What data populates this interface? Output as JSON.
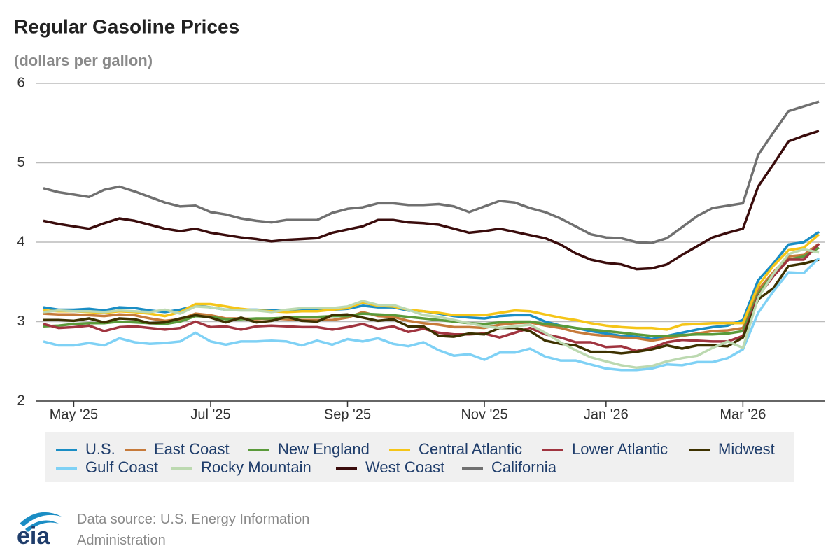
{
  "chart_data": {
    "type": "line",
    "title": "Regular Gasoline Prices",
    "subtitle": "(dollars per gallon)",
    "source": "Data source: U.S. Energy Information Administration",
    "logo": "eia",
    "categories": [
      null,
      null,
      "May '25",
      null,
      null,
      null,
      null,
      null,
      null,
      null,
      null,
      "Jul '25",
      null,
      null,
      null,
      null,
      null,
      null,
      null,
      null,
      "Sep '25",
      null,
      null,
      null,
      null,
      null,
      null,
      null,
      null,
      "Nov '25",
      null,
      null,
      null,
      null,
      null,
      null,
      null,
      "Jan '26",
      null,
      null,
      null,
      null,
      null,
      null,
      null,
      null,
      "Mar '26",
      null,
      null,
      null,
      null,
      null
    ],
    "ylim": [
      2,
      6
    ],
    "yticks": [
      2,
      3,
      4,
      5,
      6
    ],
    "grid": true,
    "series": [
      {
        "name": "U.S.",
        "color": "#1a8dc4",
        "values": [
          3.18,
          3.15,
          3.15,
          3.16,
          3.14,
          3.18,
          3.17,
          3.14,
          3.12,
          3.15,
          3.2,
          3.18,
          3.15,
          3.15,
          3.15,
          3.14,
          3.14,
          3.15,
          3.15,
          3.15,
          3.16,
          3.2,
          3.18,
          3.18,
          3.14,
          3.13,
          3.1,
          3.07,
          3.05,
          3.04,
          3.07,
          3.08,
          3.08,
          3.0,
          2.95,
          2.92,
          2.88,
          2.85,
          2.82,
          2.81,
          2.78,
          2.82,
          2.86,
          2.9,
          2.93,
          2.95,
          3.02,
          3.52,
          3.73,
          3.97,
          4.0,
          4.13
        ]
      },
      {
        "name": "East Coast",
        "color": "#c67a3a",
        "values": [
          3.1,
          3.09,
          3.09,
          3.08,
          3.07,
          3.09,
          3.08,
          3.04,
          3.01,
          3.03,
          3.1,
          3.08,
          3.04,
          3.04,
          3.03,
          3.04,
          3.03,
          3.02,
          3.02,
          3.02,
          3.05,
          3.12,
          3.07,
          3.06,
          3.01,
          2.98,
          2.96,
          2.93,
          2.93,
          2.92,
          2.96,
          2.98,
          2.99,
          2.95,
          2.92,
          2.87,
          2.84,
          2.82,
          2.8,
          2.79,
          2.76,
          2.79,
          2.82,
          2.85,
          2.88,
          2.89,
          2.92,
          3.4,
          3.62,
          3.82,
          3.84,
          3.98
        ]
      },
      {
        "name": "New England",
        "color": "#5a9a3a",
        "values": [
          2.94,
          2.95,
          2.97,
          2.98,
          2.98,
          3.0,
          2.99,
          2.98,
          2.97,
          3.0,
          3.07,
          3.06,
          3.03,
          3.03,
          3.04,
          3.04,
          3.05,
          3.06,
          3.06,
          3.07,
          3.07,
          3.1,
          3.09,
          3.08,
          3.06,
          3.04,
          3.02,
          3.0,
          2.98,
          2.97,
          2.99,
          3.0,
          3.0,
          2.97,
          2.95,
          2.92,
          2.9,
          2.88,
          2.86,
          2.84,
          2.82,
          2.82,
          2.83,
          2.84,
          2.84,
          2.85,
          2.88,
          3.35,
          3.6,
          3.78,
          3.82,
          3.93
        ]
      },
      {
        "name": "Central Atlantic",
        "color": "#f5c518",
        "values": [
          3.14,
          3.13,
          3.13,
          3.12,
          3.11,
          3.13,
          3.12,
          3.1,
          3.07,
          3.12,
          3.22,
          3.22,
          3.19,
          3.16,
          3.14,
          3.13,
          3.12,
          3.13,
          3.13,
          3.15,
          3.17,
          3.24,
          3.2,
          3.19,
          3.15,
          3.13,
          3.11,
          3.08,
          3.08,
          3.08,
          3.11,
          3.14,
          3.13,
          3.09,
          3.05,
          3.02,
          2.98,
          2.95,
          2.93,
          2.92,
          2.92,
          2.9,
          2.96,
          2.97,
          2.98,
          2.98,
          2.98,
          3.45,
          3.7,
          3.9,
          3.93,
          4.1
        ]
      },
      {
        "name": "Lower Atlantic",
        "color": "#a0343f",
        "values": [
          2.97,
          2.92,
          2.93,
          2.95,
          2.88,
          2.93,
          2.94,
          2.92,
          2.9,
          2.92,
          3.0,
          2.93,
          2.94,
          2.9,
          2.94,
          2.95,
          2.94,
          2.93,
          2.93,
          2.9,
          2.93,
          2.97,
          2.91,
          2.94,
          2.87,
          2.91,
          2.86,
          2.84,
          2.84,
          2.85,
          2.8,
          2.86,
          2.92,
          2.84,
          2.8,
          2.74,
          2.74,
          2.68,
          2.69,
          2.63,
          2.67,
          2.74,
          2.77,
          2.76,
          2.75,
          2.75,
          2.82,
          3.32,
          3.57,
          3.78,
          3.78,
          3.98
        ]
      },
      {
        "name": "Midwest",
        "color": "#3d3100",
        "values": [
          3.02,
          3.02,
          3.01,
          3.04,
          2.99,
          3.04,
          3.03,
          2.98,
          2.99,
          3.04,
          3.08,
          3.05,
          2.99,
          3.05,
          2.99,
          3.01,
          3.06,
          3.01,
          3.0,
          3.08,
          3.09,
          3.05,
          3.01,
          3.03,
          2.94,
          2.94,
          2.82,
          2.81,
          2.85,
          2.84,
          2.92,
          2.92,
          2.88,
          2.76,
          2.72,
          2.7,
          2.62,
          2.62,
          2.6,
          2.62,
          2.65,
          2.7,
          2.66,
          2.7,
          2.7,
          2.69,
          2.8,
          3.28,
          3.42,
          3.7,
          3.73,
          3.78
        ]
      },
      {
        "name": "Gulf Coast",
        "color": "#7fd1f5",
        "values": [
          2.75,
          2.7,
          2.7,
          2.73,
          2.7,
          2.79,
          2.74,
          2.72,
          2.73,
          2.75,
          2.86,
          2.75,
          2.71,
          2.75,
          2.75,
          2.76,
          2.75,
          2.7,
          2.76,
          2.71,
          2.78,
          2.75,
          2.79,
          2.72,
          2.69,
          2.74,
          2.64,
          2.57,
          2.59,
          2.52,
          2.61,
          2.61,
          2.66,
          2.56,
          2.51,
          2.51,
          2.46,
          2.41,
          2.39,
          2.39,
          2.41,
          2.46,
          2.45,
          2.49,
          2.49,
          2.54,
          2.65,
          3.11,
          3.38,
          3.62,
          3.61,
          3.8
        ]
      },
      {
        "name": "Rocky Mountain",
        "color": "#bcd9b0",
        "values": [
          3.12,
          3.14,
          3.13,
          3.13,
          3.12,
          3.14,
          3.13,
          3.12,
          3.15,
          3.1,
          3.19,
          3.18,
          3.15,
          3.14,
          3.14,
          3.12,
          3.15,
          3.17,
          3.17,
          3.17,
          3.19,
          3.26,
          3.21,
          3.21,
          3.15,
          3.08,
          3.06,
          3.02,
          2.98,
          2.94,
          2.92,
          2.94,
          2.96,
          2.86,
          2.74,
          2.64,
          2.55,
          2.5,
          2.45,
          2.42,
          2.44,
          2.5,
          2.54,
          2.57,
          2.67,
          2.75,
          2.67,
          3.3,
          3.6,
          3.85,
          3.91,
          3.87
        ]
      },
      {
        "name": "West Coast",
        "color": "#3a0c0c",
        "values": [
          4.27,
          4.23,
          4.2,
          4.17,
          4.24,
          4.3,
          4.27,
          4.22,
          4.17,
          4.14,
          4.17,
          4.12,
          4.09,
          4.06,
          4.04,
          4.01,
          4.03,
          4.04,
          4.05,
          4.12,
          4.16,
          4.2,
          4.28,
          4.28,
          4.25,
          4.24,
          4.22,
          4.17,
          4.12,
          4.14,
          4.17,
          4.13,
          4.09,
          4.05,
          3.97,
          3.86,
          3.78,
          3.74,
          3.72,
          3.66,
          3.67,
          3.72,
          3.84,
          3.95,
          4.06,
          4.12,
          4.17,
          4.7,
          4.98,
          5.27,
          5.34,
          5.4
        ]
      },
      {
        "name": "California",
        "color": "#707070",
        "values": [
          4.68,
          4.63,
          4.6,
          4.57,
          4.66,
          4.7,
          4.64,
          4.57,
          4.5,
          4.45,
          4.46,
          4.38,
          4.35,
          4.3,
          4.27,
          4.25,
          4.28,
          4.28,
          4.28,
          4.37,
          4.42,
          4.44,
          4.49,
          4.49,
          4.47,
          4.47,
          4.48,
          4.45,
          4.38,
          4.45,
          4.52,
          4.5,
          4.43,
          4.38,
          4.3,
          4.2,
          4.1,
          4.06,
          4.05,
          4.0,
          3.99,
          4.05,
          4.19,
          4.33,
          4.43,
          4.46,
          4.49,
          5.1,
          5.38,
          5.65,
          5.71,
          5.77
        ]
      }
    ]
  }
}
